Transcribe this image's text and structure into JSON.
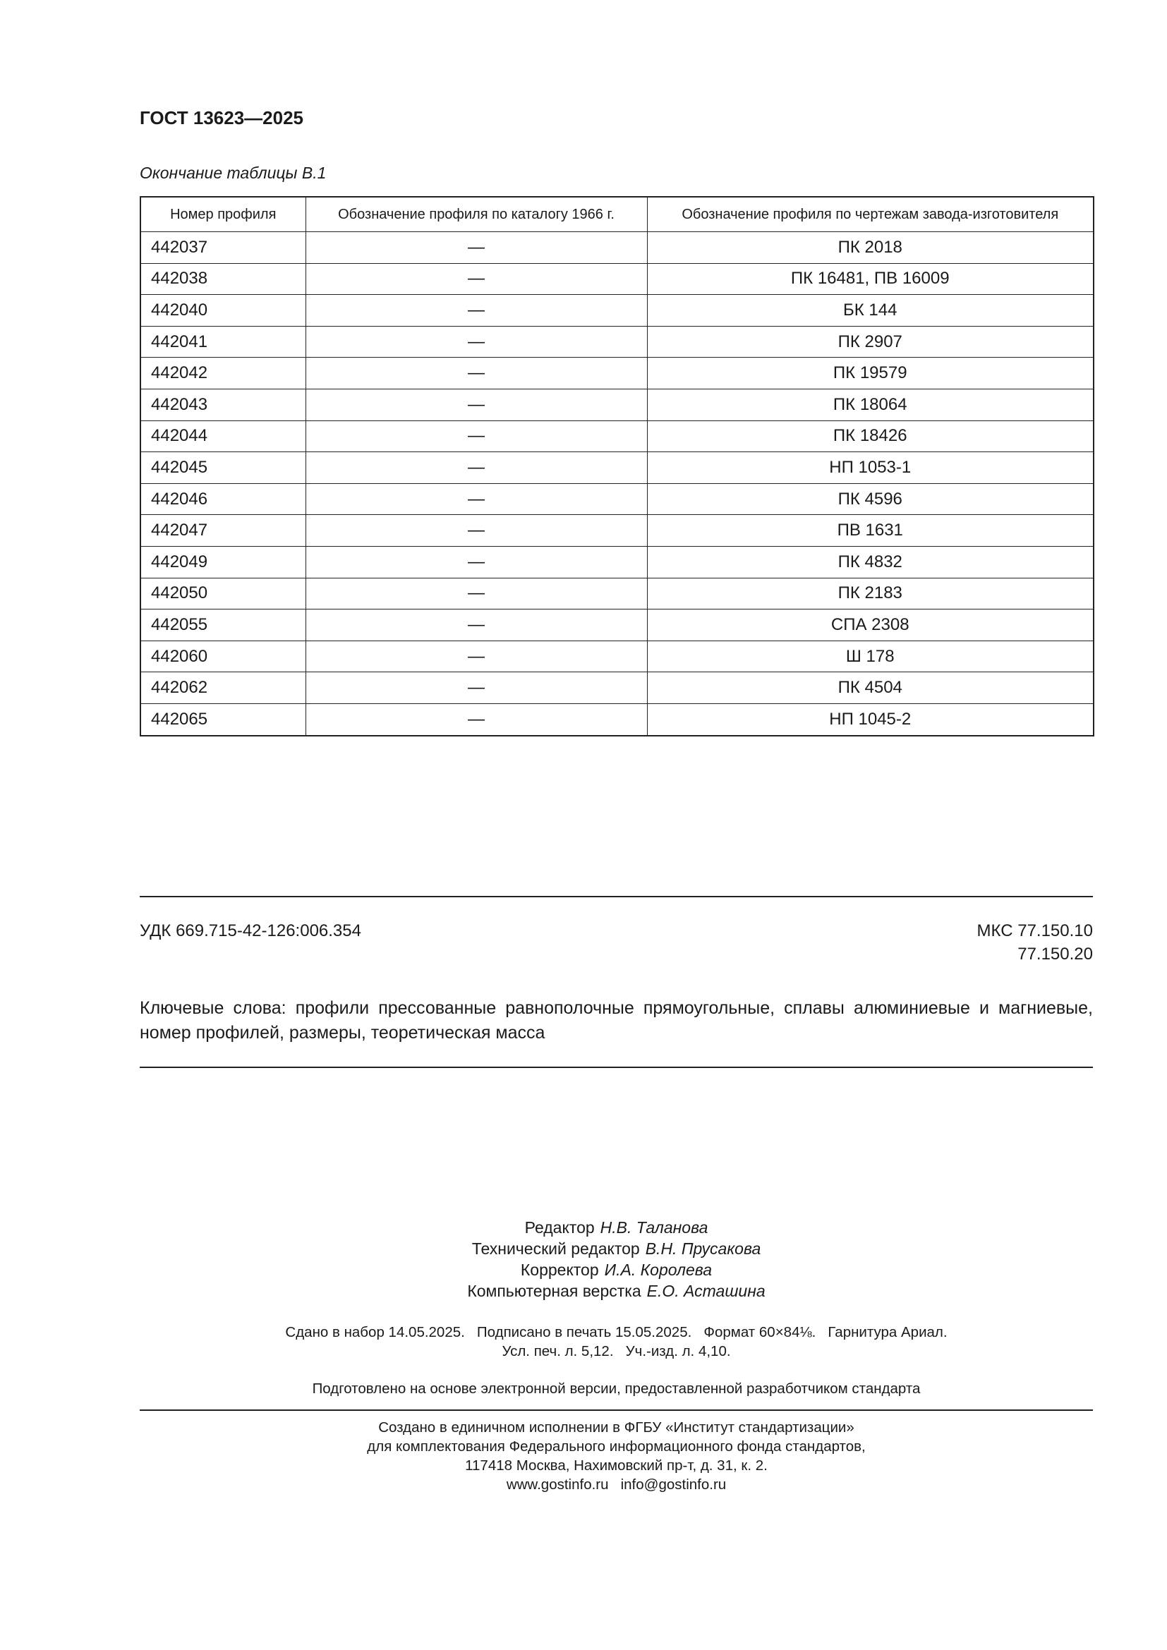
{
  "header": {
    "title": "ГОСТ 13623—2025"
  },
  "table": {
    "caption": "Окончание таблицы В.1",
    "columns": [
      "Номер профиля",
      "Обозначение профиля по каталогу 1966 г.",
      "Обозначение профиля по чертежам завода-изготовителя"
    ],
    "rows": [
      [
        "442037",
        "—",
        "ПК 2018"
      ],
      [
        "442038",
        "—",
        "ПК 16481, ПВ 16009"
      ],
      [
        "442040",
        "—",
        "БК 144"
      ],
      [
        "442041",
        "—",
        "ПК 2907"
      ],
      [
        "442042",
        "—",
        "ПК 19579"
      ],
      [
        "442043",
        "—",
        "ПК 18064"
      ],
      [
        "442044",
        "—",
        "ПК 18426"
      ],
      [
        "442045",
        "—",
        "НП 1053-1"
      ],
      [
        "442046",
        "—",
        "ПК 4596"
      ],
      [
        "442047",
        "—",
        "ПВ 1631"
      ],
      [
        "442049",
        "—",
        "ПК 4832"
      ],
      [
        "442050",
        "—",
        "ПК 2183"
      ],
      [
        "442055",
        "—",
        "СПА 2308"
      ],
      [
        "442060",
        "—",
        "Ш 178"
      ],
      [
        "442062",
        "—",
        "ПК 4504"
      ],
      [
        "442065",
        "—",
        "НП 1045-2"
      ]
    ]
  },
  "footer": {
    "udk": "УДК 669.715-42-126:006.354",
    "mks": [
      "МКС 77.150.10",
      "77.150.20"
    ],
    "keywords": "Ключевые слова: профили прессованные равнополочные прямоугольные, сплавы алюминиевые и магниевые, номер профилей, размеры, теоретическая масса"
  },
  "credits": [
    {
      "role": "Редактор",
      "name": "Н.В. Таланова"
    },
    {
      "role": "Технический редактор",
      "name": "В.Н. Прусакова"
    },
    {
      "role": "Корректор",
      "name": "И.А. Королева"
    },
    {
      "role": "Компьютерная верстка",
      "name": "Е.О. Асташина"
    }
  ],
  "publication": [
    "Сдано в набор 14.05.2025.   Подписано в печать 15.05.2025.   Формат 60×84⅛.   Гарнитура Ариал.",
    "Усл. печ. л. 5,12.   Уч.-изд. л. 4,10."
  ],
  "prepared": "Подготовлено на основе электронной версии, предоставленной разработчиком стандарта",
  "created": [
    "Создано в единичном исполнении в ФГБУ «Институт стандартизации»",
    "для комплектования Федерального информационного фонда стандартов,",
    "117418 Москва, Нахимовский пр-т, д. 31, к. 2.",
    "www.gostinfo.ru   info@gostinfo.ru"
  ]
}
